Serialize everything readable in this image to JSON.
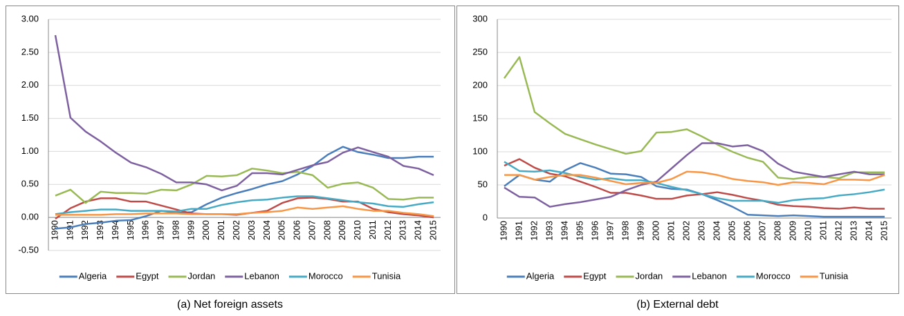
{
  "chart_data": [
    {
      "type": "line",
      "caption": "(a) Net foreign assets",
      "categories": [
        "1990",
        "1991",
        "1992",
        "1993",
        "1994",
        "1995",
        "1996",
        "1997",
        "1998",
        "1999",
        "2000",
        "2001",
        "2002",
        "2003",
        "2004",
        "2005",
        "2006",
        "2007",
        "2008",
        "2009",
        "2010",
        "2011",
        "2012",
        "2013",
        "2014",
        "2015"
      ],
      "series": [
        {
          "name": "Algeria",
          "color": "#4a7ebb",
          "values": [
            -0.17,
            -0.15,
            -0.1,
            -0.08,
            -0.05,
            -0.04,
            0.02,
            0.1,
            0.07,
            0.08,
            0.2,
            0.3,
            0.37,
            0.43,
            0.5,
            0.55,
            0.65,
            0.78,
            0.95,
            1.07,
            0.99,
            0.95,
            0.9,
            0.9,
            0.92,
            0.92
          ]
        },
        {
          "name": "Egypt",
          "color": "#be4b48",
          "values": [
            -0.02,
            0.14,
            0.24,
            0.29,
            0.29,
            0.24,
            0.24,
            0.18,
            0.12,
            0.06,
            0.05,
            0.05,
            0.04,
            0.07,
            0.1,
            0.22,
            0.29,
            0.3,
            0.28,
            0.24,
            0.24,
            0.13,
            0.08,
            0.05,
            0.03,
            0.0
          ]
        },
        {
          "name": "Jordan",
          "color": "#98b954",
          "values": [
            0.33,
            0.42,
            0.22,
            0.39,
            0.37,
            0.37,
            0.36,
            0.42,
            0.41,
            0.5,
            0.63,
            0.62,
            0.64,
            0.74,
            0.71,
            0.67,
            0.69,
            0.64,
            0.45,
            0.51,
            0.53,
            0.45,
            0.28,
            0.27,
            0.3,
            0.3
          ]
        },
        {
          "name": "Lebanon",
          "color": "#7d60a0",
          "values": [
            2.76,
            1.51,
            1.3,
            1.15,
            0.98,
            0.83,
            0.76,
            0.66,
            0.53,
            0.53,
            0.5,
            0.41,
            0.48,
            0.67,
            0.67,
            0.65,
            0.72,
            0.79,
            0.84,
            0.98,
            1.06,
            0.99,
            0.92,
            0.78,
            0.74,
            0.64
          ]
        },
        {
          "name": "Morocco",
          "color": "#46aac5",
          "values": [
            0.05,
            0.08,
            0.1,
            0.12,
            0.12,
            0.1,
            0.1,
            0.1,
            0.09,
            0.13,
            0.13,
            0.19,
            0.23,
            0.26,
            0.27,
            0.3,
            0.32,
            0.32,
            0.29,
            0.26,
            0.23,
            0.21,
            0.17,
            0.16,
            0.2,
            0.23
          ]
        },
        {
          "name": "Tunisia",
          "color": "#f79646",
          "values": [
            0.04,
            0.04,
            0.04,
            0.04,
            0.05,
            0.05,
            0.06,
            0.06,
            0.06,
            0.05,
            0.05,
            0.05,
            0.05,
            0.07,
            0.08,
            0.1,
            0.15,
            0.13,
            0.15,
            0.17,
            0.13,
            0.1,
            0.1,
            0.07,
            0.05,
            0.02
          ]
        }
      ],
      "ylim": [
        -0.5,
        3
      ],
      "yticks": [
        {
          "value": -0.5,
          "label": "-0.50"
        },
        {
          "value": 0,
          "label": "0.00"
        },
        {
          "value": 0.5,
          "label": "0.50"
        },
        {
          "value": 1,
          "label": "1.00"
        },
        {
          "value": 1.5,
          "label": "1.50"
        },
        {
          "value": 2,
          "label": "2.00"
        },
        {
          "value": 2.5,
          "label": "2.50"
        },
        {
          "value": 3,
          "label": "3.00"
        }
      ],
      "grid": true,
      "legend": "bottom"
    },
    {
      "type": "line",
      "caption": "(b) External debt",
      "categories": [
        "1990",
        "1991",
        "1992",
        "1993",
        "1994",
        "1995",
        "1996",
        "1997",
        "1998",
        "1999",
        "2000",
        "2001",
        "2002",
        "2003",
        "2004",
        "2005",
        "2006",
        "2007",
        "2008",
        "2009",
        "2010",
        "2011",
        "2012",
        "2013",
        "2014",
        "2015"
      ],
      "series": [
        {
          "name": "Algeria",
          "color": "#4a7ebb",
          "values": [
            48,
            65,
            58,
            55,
            72,
            83,
            76,
            67,
            66,
            62,
            48,
            44,
            43,
            36,
            27,
            17,
            5,
            4,
            3,
            4,
            3,
            2,
            2,
            2,
            2,
            2
          ]
        },
        {
          "name": "Egypt",
          "color": "#be4b48",
          "values": [
            79,
            89,
            76,
            67,
            63,
            55,
            47,
            38,
            38,
            34,
            29,
            29,
            34,
            36,
            39,
            35,
            30,
            26,
            20,
            18,
            17,
            15,
            14,
            16,
            14,
            14
          ]
        },
        {
          "name": "Jordan",
          "color": "#98b954",
          "values": [
            211,
            243,
            160,
            143,
            127,
            119,
            111,
            104,
            97,
            101,
            129,
            130,
            134,
            123,
            111,
            100,
            91,
            85,
            61,
            59,
            62,
            62,
            60,
            69,
            69,
            69
          ]
        },
        {
          "name": "Lebanon",
          "color": "#7d60a0",
          "values": [
            46,
            32,
            31,
            17,
            21,
            24,
            28,
            32,
            42,
            50,
            55,
            75,
            95,
            113,
            113,
            108,
            110,
            101,
            82,
            70,
            66,
            62,
            66,
            70,
            66,
            66
          ]
        },
        {
          "name": "Morocco",
          "color": "#46aac5",
          "values": [
            85,
            71,
            70,
            72,
            68,
            62,
            58,
            60,
            57,
            57,
            53,
            47,
            42,
            36,
            30,
            26,
            26,
            26,
            23,
            27,
            29,
            30,
            34,
            36,
            39,
            43
          ]
        },
        {
          "name": "Tunisia",
          "color": "#f79646",
          "values": [
            65,
            65,
            58,
            62,
            65,
            65,
            61,
            56,
            51,
            53,
            53,
            59,
            70,
            69,
            65,
            59,
            56,
            54,
            50,
            54,
            53,
            51,
            58,
            58,
            57,
            65
          ]
        }
      ],
      "ylim": [
        0,
        300
      ],
      "yticks": [
        0,
        50,
        100,
        150,
        200,
        250,
        300
      ],
      "grid": true,
      "legend": "bottom"
    }
  ]
}
